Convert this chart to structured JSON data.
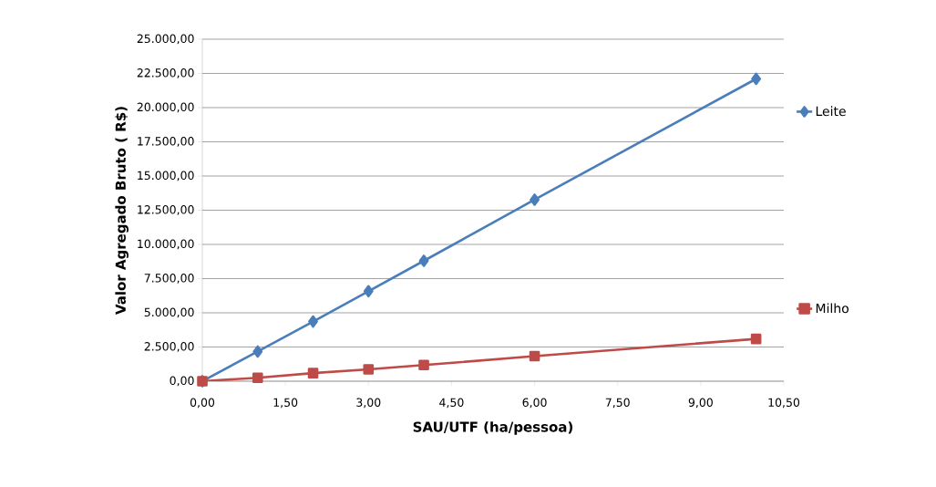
{
  "chart_data": {
    "type": "line",
    "xlabel": "SAU/UTF (ha/pessoa)",
    "ylabel": "Valor Agregado Bruto ( R$)",
    "x": [
      0,
      1,
      2,
      3,
      4,
      6,
      10
    ],
    "series": [
      {
        "name": "Leite",
        "color": "#4a7ebb",
        "marker": "diamond",
        "values": [
          0,
          2170,
          4360,
          6580,
          8800,
          13270,
          22100
        ]
      },
      {
        "name": "Milho",
        "color": "#be4b48",
        "marker": "square",
        "values": [
          0,
          250,
          590,
          870,
          1180,
          1830,
          3090
        ]
      }
    ],
    "xlim": [
      0,
      10.5
    ],
    "xticks": [
      {
        "value": 0,
        "label": "0,00"
      },
      {
        "value": 1.5,
        "label": "1,50"
      },
      {
        "value": 3,
        "label": "3,00"
      },
      {
        "value": 4.5,
        "label": "4,50"
      },
      {
        "value": 6,
        "label": "6,00"
      },
      {
        "value": 7.5,
        "label": "7,50"
      },
      {
        "value": 9,
        "label": "9,00"
      },
      {
        "value": 10.5,
        "label": "10,50"
      }
    ],
    "ylim": [
      0,
      25000
    ],
    "yticks": [
      {
        "value": 0,
        "label": "0,00"
      },
      {
        "value": 2500,
        "label": "2.500,00"
      },
      {
        "value": 5000,
        "label": "5.000,00"
      },
      {
        "value": 7500,
        "label": "7.500,00"
      },
      {
        "value": 10000,
        "label": "10.000,00"
      },
      {
        "value": 12500,
        "label": "12.500,00"
      },
      {
        "value": 15000,
        "label": "15.000,00"
      },
      {
        "value": 17500,
        "label": "17.500,00"
      },
      {
        "value": 20000,
        "label": "20.000,00"
      },
      {
        "value": 22500,
        "label": "22.500,00"
      },
      {
        "value": 25000,
        "label": "25.000,00"
      }
    ],
    "grid": "y",
    "legend": "right",
    "line_style": "solid"
  }
}
